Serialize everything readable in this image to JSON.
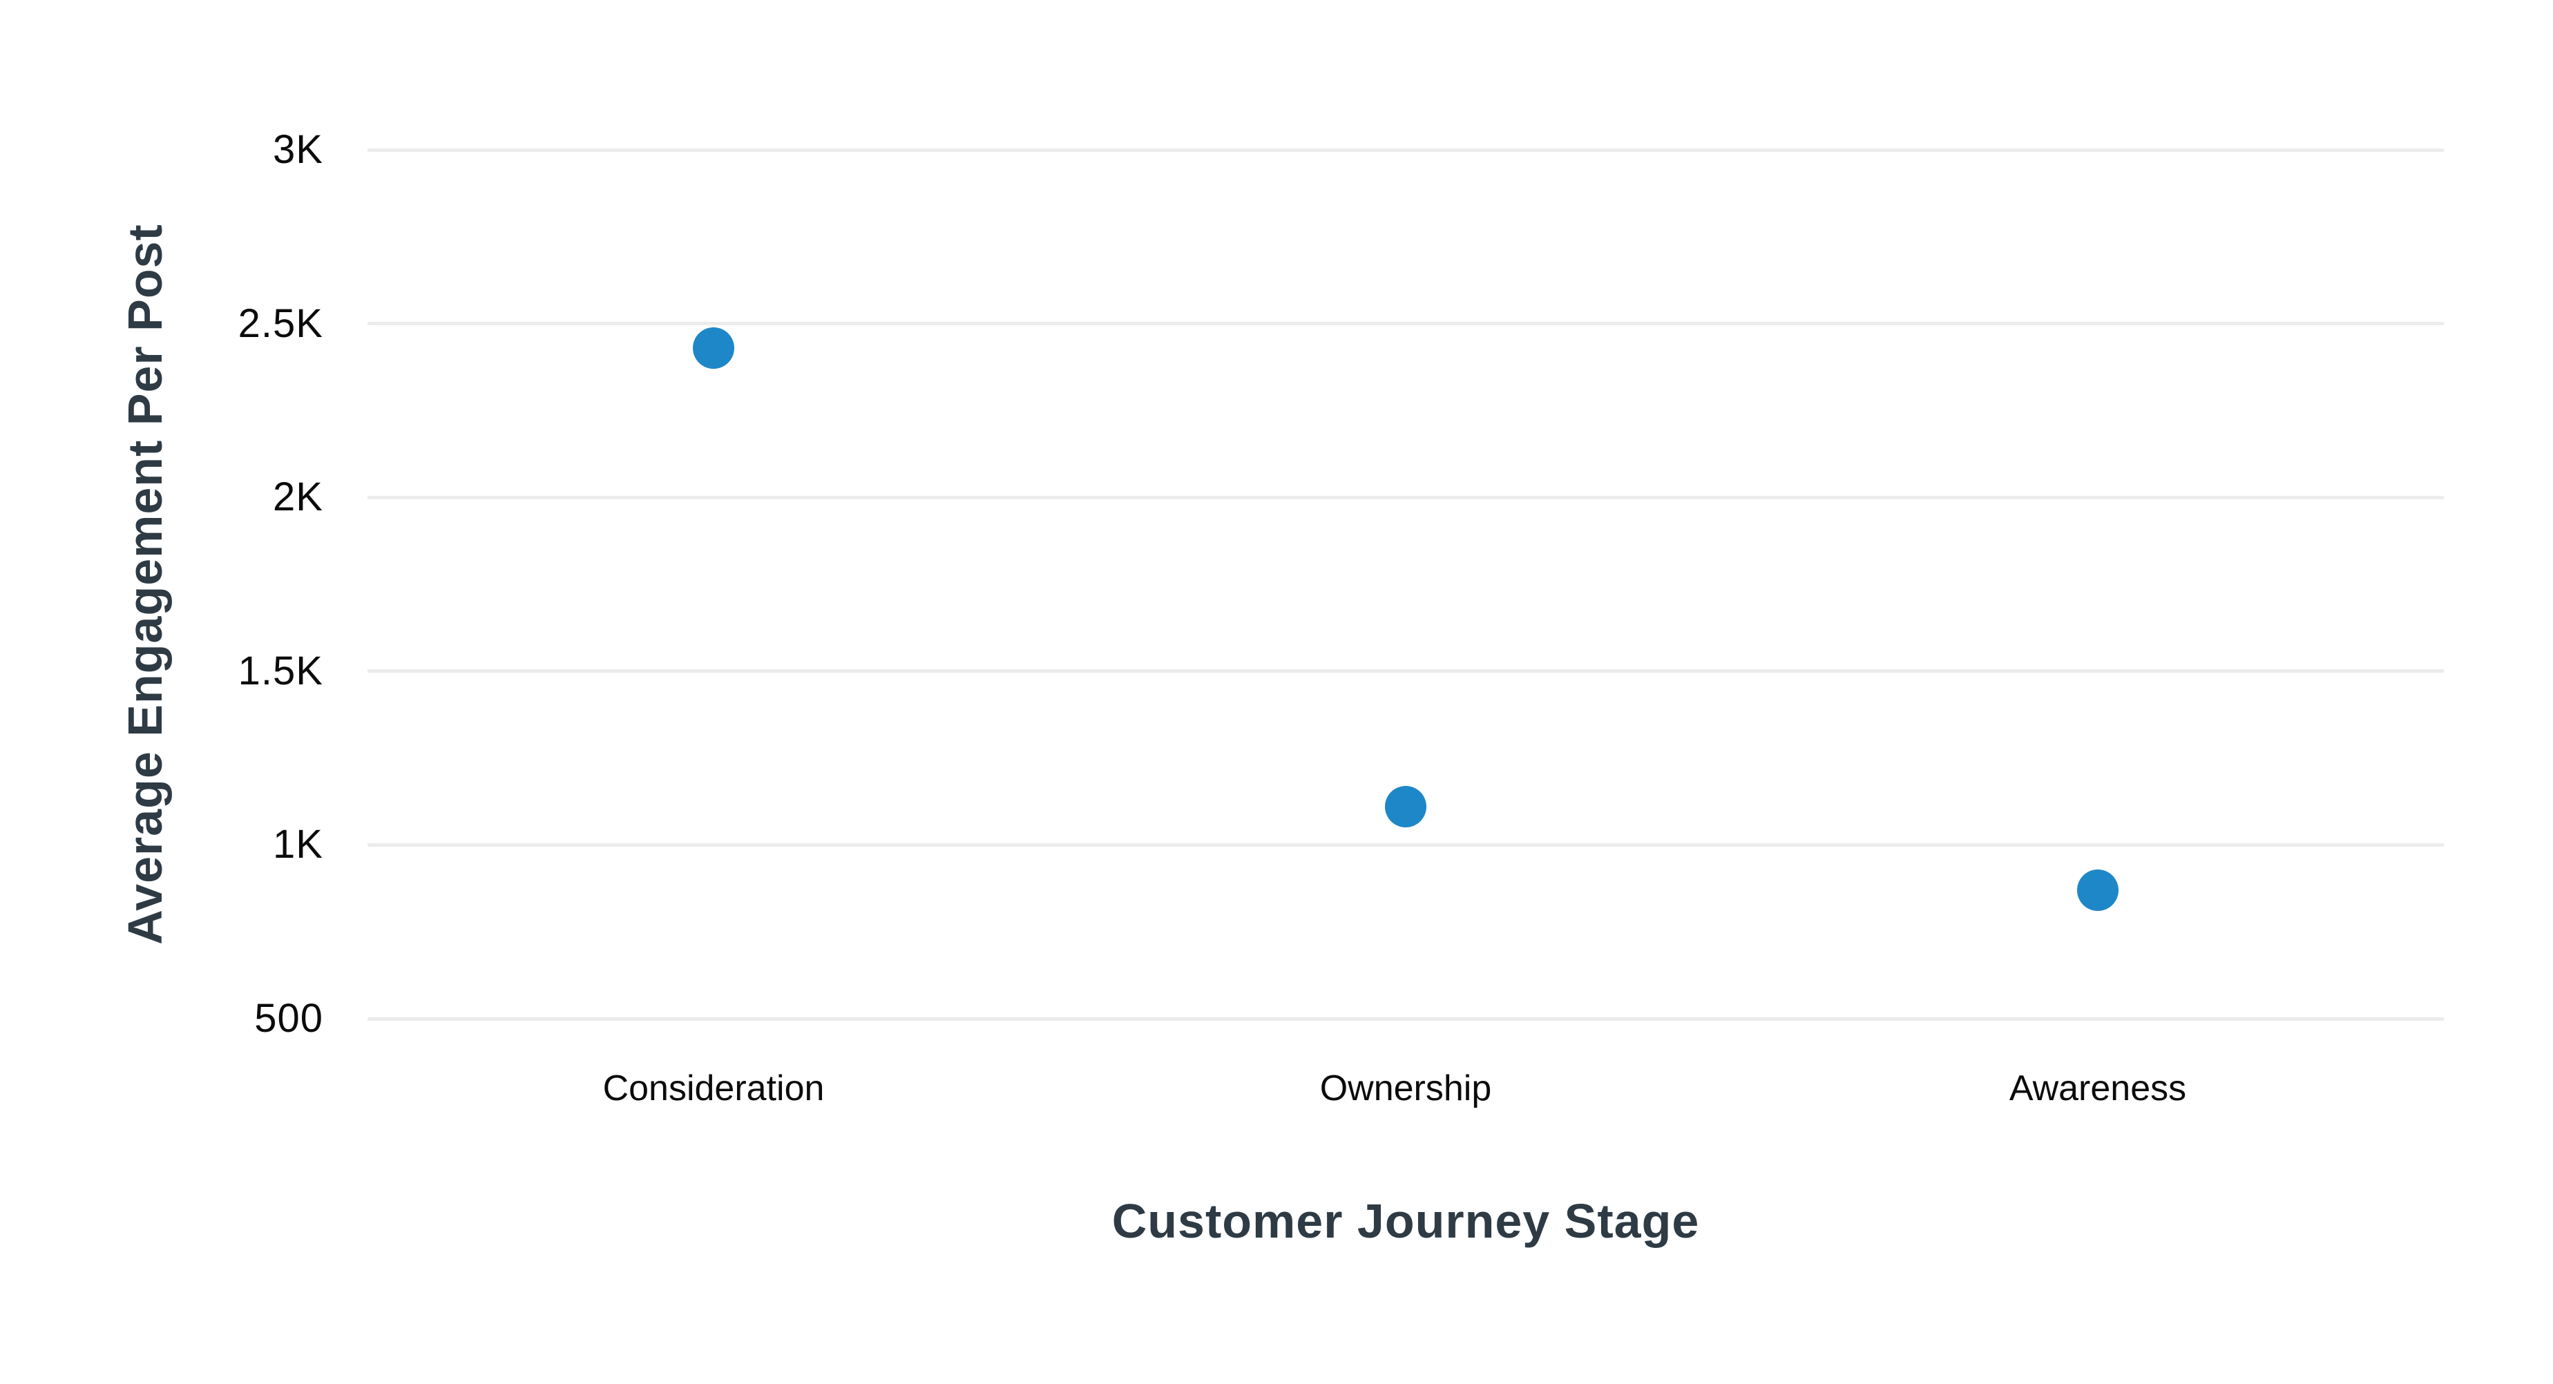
{
  "chart_data": {
    "type": "scatter",
    "categories": [
      "Consideration",
      "Ownership",
      "Awareness"
    ],
    "series": [
      {
        "name": "Average Engagement Per Post",
        "values": [
          2430,
          1110,
          870
        ]
      }
    ],
    "title": "",
    "xlabel": "Customer Journey Stage",
    "ylabel": "Average Engagement Per Post",
    "ylim": [
      500,
      3000
    ],
    "yticks": [
      {
        "value": 3000,
        "label": "3K"
      },
      {
        "value": 2500,
        "label": "2.5K"
      },
      {
        "value": 2000,
        "label": "2K"
      },
      {
        "value": 1500,
        "label": "1.5K"
      },
      {
        "value": 1000,
        "label": "1K"
      },
      {
        "value": 500,
        "label": "500"
      }
    ],
    "grid": "horizontal-only",
    "legend": "none",
    "colors": {
      "point": "#1e87c8",
      "gridline": "#ececec",
      "tick_label": "#0b0b0b",
      "axis_title": "#2e3b45",
      "background": "#ffffff"
    }
  }
}
